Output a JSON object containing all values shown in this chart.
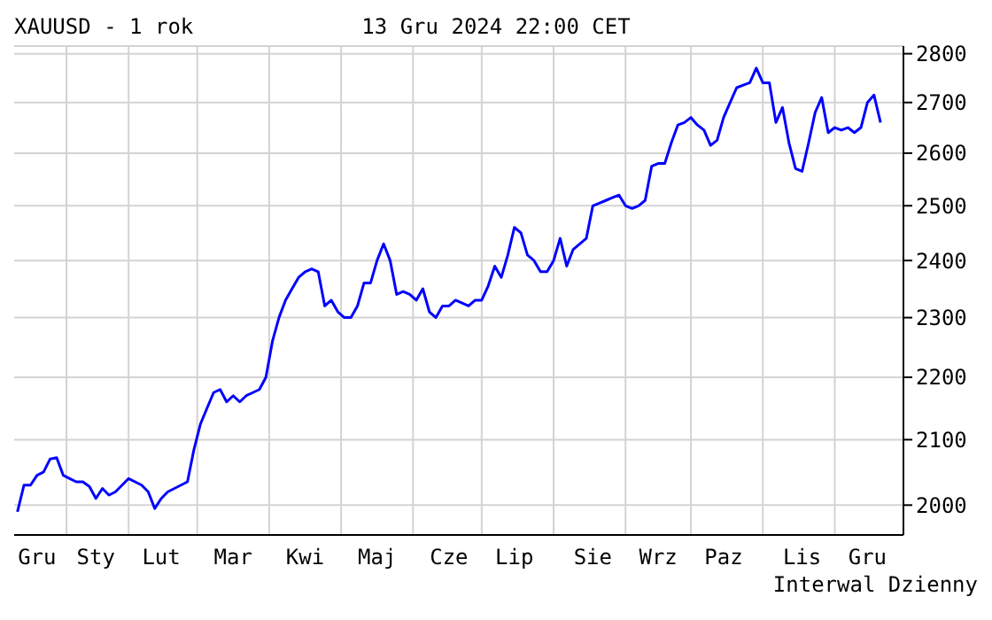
{
  "chart_data": {
    "type": "line",
    "title": "XAUUSD - 1 rok",
    "subtitle": "13 Gru 2024 22:00 CET",
    "annotations": [
      "Interwal Dzienny"
    ],
    "log": true,
    "grid": true,
    "categories": [
      null,
      null,
      null,
      "Gru",
      null,
      null,
      null,
      null,
      null,
      null,
      null,
      null,
      "Sty",
      null,
      null,
      null,
      null,
      null,
      null,
      null,
      null,
      null,
      "Lut",
      null,
      null,
      null,
      null,
      null,
      null,
      null,
      null,
      null,
      null,
      "Mar",
      null,
      null,
      null,
      null,
      null,
      null,
      null,
      null,
      null,
      null,
      "Kwi",
      null,
      null,
      null,
      null,
      null,
      null,
      null,
      null,
      null,
      null,
      "Maj",
      null,
      null,
      null,
      null,
      null,
      null,
      null,
      null,
      null,
      null,
      "Cze",
      null,
      null,
      null,
      null,
      null,
      null,
      null,
      null,
      null,
      "Lip",
      null,
      null,
      null,
      null,
      null,
      null,
      null,
      null,
      null,
      null,
      null,
      "Sie",
      null,
      null,
      null,
      null,
      null,
      null,
      null,
      null,
      null,
      "Wrz",
      null,
      null,
      null,
      null,
      null,
      null,
      null,
      null,
      null,
      "Paz",
      null,
      null,
      null,
      null,
      null,
      null,
      null,
      null,
      null,
      null,
      null,
      "Lis",
      null,
      null,
      null,
      null,
      null,
      null,
      null,
      null,
      null,
      "Gru",
      null,
      null
    ],
    "ylim": [
      1956,
      2816
    ],
    "yticks": [
      2000,
      2100,
      2200,
      2300,
      2400,
      2500,
      2600,
      2700,
      2800
    ],
    "series": [
      {
        "color": "#0000ff",
        "values": [
          1990,
          2030,
          2030,
          2045,
          2050,
          2070,
          2072,
          2045,
          2040,
          2035,
          2035,
          2028,
          2010,
          2025,
          2015,
          2020,
          2030,
          2040,
          2035,
          2030,
          2020,
          1995,
          2010,
          2020,
          2025,
          2030,
          2035,
          2085,
          2125,
          2150,
          2175,
          2180,
          2160,
          2170,
          2160,
          2170,
          2175,
          2180,
          2200,
          2260,
          2300,
          2330,
          2350,
          2370,
          2380,
          2385,
          2380,
          2320,
          2330,
          2310,
          2300,
          2300,
          2320,
          2360,
          2360,
          2400,
          2430,
          2400,
          2340,
          2345,
          2340,
          2330,
          2350,
          2310,
          2300,
          2320,
          2320,
          2330,
          2325,
          2320,
          2330,
          2330,
          2355,
          2390,
          2370,
          2410,
          2460,
          2450,
          2410,
          2400,
          2380,
          2380,
          2400,
          2440,
          2390,
          2420,
          2430,
          2440,
          2500,
          2505,
          2510,
          2515,
          2520,
          2500,
          2495,
          2500,
          2510,
          2575,
          2580,
          2580,
          2620,
          2655,
          2660,
          2670,
          2655,
          2645,
          2615,
          2625,
          2670,
          2700,
          2730,
          2735,
          2740,
          2770,
          2740,
          2740,
          2660,
          2690,
          2620,
          2570,
          2565,
          2620,
          2680,
          2710,
          2640,
          2650,
          2645,
          2650,
          2640,
          2650,
          2700,
          2715,
          2660
        ]
      }
    ]
  }
}
